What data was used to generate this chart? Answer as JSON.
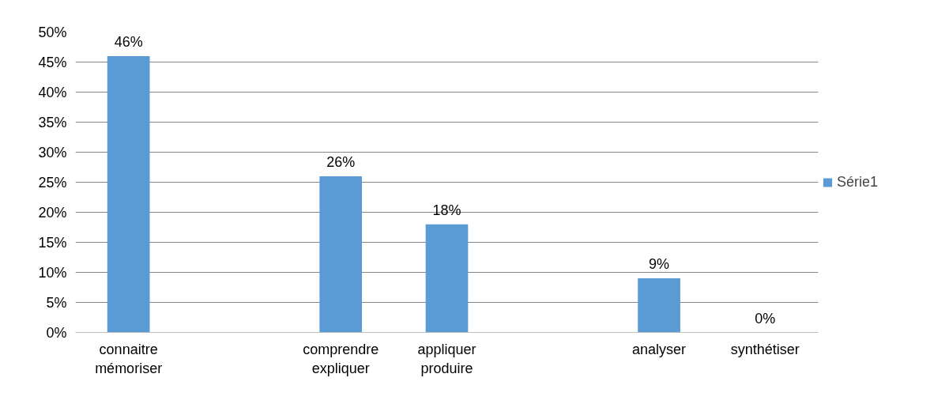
{
  "chart_data": {
    "type": "bar",
    "categories": [
      "connaitre\nmémoriser",
      null,
      "comprendre\nexpliquer",
      "appliquer\nproduire",
      null,
      "analyser",
      "synthétiser"
    ],
    "series": [
      {
        "name": "Série1",
        "color": "#5b9bd5",
        "values": [
          46,
          null,
          26,
          18,
          null,
          9,
          0
        ],
        "value_labels": [
          "46%",
          null,
          "26%",
          "18%",
          null,
          "9%",
          "0%"
        ]
      }
    ],
    "ylim": [
      0,
      50
    ],
    "yticks": [
      {
        "value": 0,
        "label": "0%"
      },
      {
        "value": 5,
        "label": "5%"
      },
      {
        "value": 10,
        "label": "10%"
      },
      {
        "value": 15,
        "label": "15%"
      },
      {
        "value": 20,
        "label": "20%"
      },
      {
        "value": 25,
        "label": "25%"
      },
      {
        "value": 30,
        "label": "30%"
      },
      {
        "value": 35,
        "label": "35%"
      },
      {
        "value": 40,
        "label": "40%"
      },
      {
        "value": 45,
        "label": "45%"
      },
      {
        "value": 50,
        "label": "50%"
      }
    ],
    "grid": "y",
    "legend": "right"
  }
}
